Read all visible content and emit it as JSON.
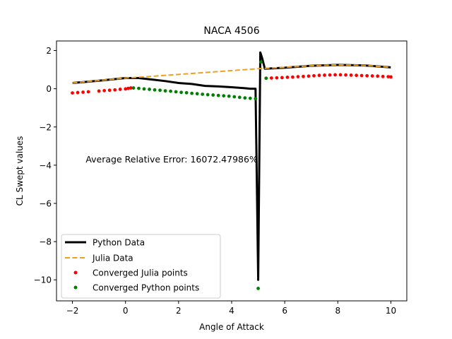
{
  "chart_data": {
    "type": "line",
    "title": "NACA 4506",
    "xlabel": "Angle of Attack",
    "ylabel": "CL Swept values",
    "xlim": [
      -2.6,
      10.6
    ],
    "ylim": [
      -11.1,
      2.5
    ],
    "x_ticks": [
      -2,
      0,
      2,
      4,
      6,
      8,
      10
    ],
    "y_ticks": [
      -10,
      -8,
      -6,
      -4,
      -2,
      0,
      2
    ],
    "x_tick_labels": [
      "−2",
      "0",
      "2",
      "4",
      "6",
      "8",
      "10"
    ],
    "y_tick_labels": [
      "−10",
      "−8",
      "−6",
      "−4",
      "−2",
      "0",
      "2"
    ],
    "grid": false,
    "legend_position": "lower-left",
    "annotation": {
      "text": "Average Relative Error: 16072.47986%",
      "x": -1.5,
      "y": -3.85
    },
    "colors": {
      "python": "#000000",
      "julia": "#f0a020",
      "julia_points": "#ff0000",
      "python_points": "#008000"
    },
    "series": [
      {
        "name": "Python Data",
        "kind": "line",
        "color": "#000000",
        "points": [
          [
            -2.0,
            0.3
          ],
          [
            -1.0,
            0.42
          ],
          [
            0.0,
            0.56
          ],
          [
            0.5,
            0.56
          ],
          [
            1.0,
            0.48
          ],
          [
            1.5,
            0.4
          ],
          [
            2.0,
            0.3
          ],
          [
            2.5,
            0.25
          ],
          [
            3.0,
            0.15
          ],
          [
            3.5,
            0.12
          ],
          [
            4.0,
            0.08
          ],
          [
            4.5,
            0.03
          ],
          [
            4.7,
            0.0
          ],
          [
            4.9,
            0.0
          ],
          [
            5.0,
            -10.0
          ],
          [
            5.08,
            1.9
          ],
          [
            5.15,
            1.6
          ],
          [
            5.25,
            1.05
          ],
          [
            6.0,
            1.1
          ],
          [
            7.0,
            1.2
          ],
          [
            8.0,
            1.25
          ],
          [
            9.0,
            1.22
          ],
          [
            10.0,
            1.12
          ]
        ]
      },
      {
        "name": "Julia Data",
        "kind": "dashed",
        "color": "#f0a020",
        "points": [
          [
            -2.0,
            0.3
          ],
          [
            0.0,
            0.56
          ],
          [
            1.0,
            0.65
          ],
          [
            2.0,
            0.75
          ],
          [
            3.0,
            0.85
          ],
          [
            4.0,
            0.95
          ],
          [
            5.0,
            1.05
          ],
          [
            6.0,
            1.12
          ],
          [
            7.0,
            1.2
          ],
          [
            8.0,
            1.25
          ],
          [
            9.0,
            1.22
          ],
          [
            10.0,
            1.12
          ]
        ]
      },
      {
        "name": "Converged Julia points",
        "kind": "markers",
        "color": "#ff0000",
        "points": [
          [
            -2.0,
            -0.22
          ],
          [
            -1.8,
            -0.2
          ],
          [
            -1.6,
            -0.18
          ],
          [
            -1.4,
            -0.16
          ],
          [
            -1.0,
            -0.12
          ],
          [
            -0.8,
            -0.1
          ],
          [
            -0.6,
            -0.08
          ],
          [
            -0.4,
            -0.06
          ],
          [
            -0.2,
            -0.03
          ],
          [
            0.0,
            -0.01
          ],
          [
            0.1,
            0.02
          ],
          [
            0.2,
            0.04
          ],
          [
            5.3,
            0.55
          ],
          [
            5.5,
            0.56
          ],
          [
            5.7,
            0.57
          ],
          [
            5.9,
            0.58
          ],
          [
            6.1,
            0.6
          ],
          [
            6.3,
            0.61
          ],
          [
            6.5,
            0.63
          ],
          [
            6.7,
            0.64
          ],
          [
            6.9,
            0.66
          ],
          [
            7.1,
            0.68
          ],
          [
            7.3,
            0.7
          ],
          [
            7.5,
            0.71
          ],
          [
            7.7,
            0.72
          ],
          [
            7.9,
            0.73
          ],
          [
            8.1,
            0.73
          ],
          [
            8.3,
            0.72
          ],
          [
            8.5,
            0.71
          ],
          [
            8.7,
            0.7
          ],
          [
            8.9,
            0.69
          ],
          [
            9.1,
            0.68
          ],
          [
            9.3,
            0.67
          ],
          [
            9.5,
            0.66
          ],
          [
            9.7,
            0.64
          ],
          [
            9.9,
            0.63
          ],
          [
            10.0,
            0.62
          ]
        ]
      },
      {
        "name": "Converged Python points",
        "kind": "markers",
        "color": "#008000",
        "points": [
          [
            0.3,
            0.04
          ],
          [
            0.5,
            0.02
          ],
          [
            0.7,
            -0.01
          ],
          [
            0.9,
            -0.03
          ],
          [
            1.1,
            -0.06
          ],
          [
            1.3,
            -0.08
          ],
          [
            1.5,
            -0.11
          ],
          [
            1.7,
            -0.13
          ],
          [
            1.9,
            -0.16
          ],
          [
            2.1,
            -0.19
          ],
          [
            2.3,
            -0.21
          ],
          [
            2.5,
            -0.24
          ],
          [
            2.7,
            -0.26
          ],
          [
            2.9,
            -0.29
          ],
          [
            3.1,
            -0.31
          ],
          [
            3.3,
            -0.33
          ],
          [
            3.5,
            -0.35
          ],
          [
            3.7,
            -0.37
          ],
          [
            3.9,
            -0.39
          ],
          [
            4.1,
            -0.42
          ],
          [
            4.3,
            -0.45
          ],
          [
            4.5,
            -0.48
          ],
          [
            4.7,
            -0.5
          ],
          [
            4.9,
            -0.52
          ],
          [
            5.0,
            -10.45
          ],
          [
            5.1,
            1.4
          ],
          [
            5.3,
            0.55
          ]
        ]
      }
    ]
  }
}
